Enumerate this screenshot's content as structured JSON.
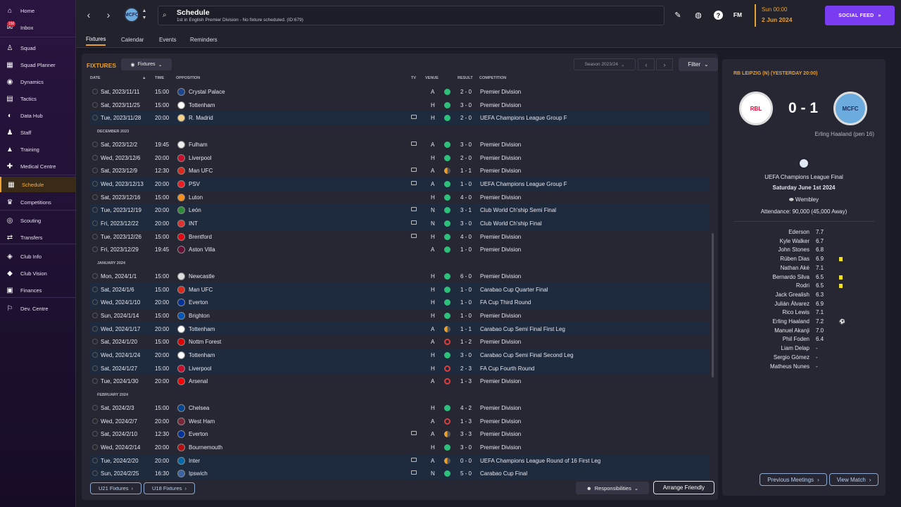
{
  "sidebar": {
    "items": [
      {
        "label": "Home",
        "icon": "home-icon",
        "glyph": "⌂"
      },
      {
        "label": "Inbox",
        "icon": "inbox-icon",
        "glyph": "✉",
        "badge": "150"
      },
      {
        "label": "Squad",
        "icon": "shirt-icon",
        "glyph": "♙"
      },
      {
        "label": "Squad Planner",
        "icon": "planner-icon",
        "glyph": "▦"
      },
      {
        "label": "Dynamics",
        "icon": "dynamics-icon",
        "glyph": "◉"
      },
      {
        "label": "Tactics",
        "icon": "tactics-icon",
        "glyph": "▤"
      },
      {
        "label": "Data Hub",
        "icon": "data-hub-icon",
        "glyph": "◐"
      },
      {
        "label": "Staff",
        "icon": "staff-icon",
        "glyph": "♟"
      },
      {
        "label": "Training",
        "icon": "training-icon",
        "glyph": "▲"
      },
      {
        "label": "Medical Centre",
        "icon": "medical-icon",
        "glyph": "✚"
      },
      {
        "label": "Schedule",
        "icon": "calendar-icon",
        "glyph": "▦"
      },
      {
        "label": "Competitions",
        "icon": "trophy-icon",
        "glyph": "♛"
      },
      {
        "label": "Scouting",
        "icon": "scouting-icon",
        "glyph": "◎"
      },
      {
        "label": "Transfers",
        "icon": "transfers-icon",
        "glyph": "⇄"
      },
      {
        "label": "Club Info",
        "icon": "shield-icon",
        "glyph": "◈"
      },
      {
        "label": "Club Vision",
        "icon": "vision-icon",
        "glyph": "◆"
      },
      {
        "label": "Finances",
        "icon": "finances-icon",
        "glyph": "▣"
      },
      {
        "label": "Dev. Centre",
        "icon": "dev-centre-icon",
        "glyph": "⚐"
      }
    ]
  },
  "header": {
    "title": "Schedule",
    "subtitle": "1st in English Premier Division - No fixture scheduled. (ID:679)",
    "club_crest": "MCFC",
    "date_line1": "Sun 00:00",
    "date_line2": "2 Jun 2024",
    "social_feed": "SOCIAL FEED",
    "fm": "FM",
    "help": "?"
  },
  "tabs": [
    "Fixtures",
    "Calendar",
    "Events",
    "Reminders"
  ],
  "fixtures": {
    "label": "FIXTURES",
    "dropdown": "Fixtures",
    "season": "Season 2023/24",
    "filter": "Filter",
    "columns": {
      "date": "DATE",
      "time": "TIME",
      "opposition": "OPPOSITION",
      "tv": "TV",
      "venue": "VENUE",
      "result": "RESULT",
      "competition": "COMPETITION"
    },
    "rows": [
      {
        "date": "Sat, 2023/11/11",
        "time": "15:00",
        "opp": "Crystal Palace",
        "crest": "#1b458f",
        "tv": false,
        "venue": "A",
        "res": "W",
        "score": "2 - 0",
        "comp": "Premier Division",
        "hl": false
      },
      {
        "date": "Sat, 2023/11/25",
        "time": "15:00",
        "opp": "Tottenham",
        "crest": "#ffffff",
        "tv": false,
        "venue": "H",
        "res": "W",
        "score": "3 - 0",
        "comp": "Premier Division",
        "hl": false
      },
      {
        "date": "Tue, 2023/11/28",
        "time": "20:00",
        "opp": "R. Madrid",
        "crest": "#f5d48a",
        "tv": true,
        "venue": "H",
        "res": "W",
        "score": "2 - 0",
        "comp": "UEFA Champions League Group F",
        "hl": true
      },
      {
        "month": "DECEMBER 2023"
      },
      {
        "date": "Sat, 2023/12/2",
        "time": "19:45",
        "opp": "Fulham",
        "crest": "#eeeeee",
        "tv": true,
        "venue": "A",
        "res": "W",
        "score": "3 - 0",
        "comp": "Premier Division",
        "hl": false
      },
      {
        "date": "Wed, 2023/12/6",
        "time": "20:00",
        "opp": "Liverpool",
        "crest": "#c8102e",
        "tv": false,
        "venue": "H",
        "res": "W",
        "score": "2 - 0",
        "comp": "Premier Division",
        "hl": false
      },
      {
        "date": "Sat, 2023/12/9",
        "time": "12:30",
        "opp": "Man UFC",
        "crest": "#da291c",
        "tv": true,
        "venue": "A",
        "res": "D",
        "score": "1 - 1",
        "comp": "Premier Division",
        "hl": false
      },
      {
        "date": "Wed, 2023/12/13",
        "time": "20:00",
        "opp": "PSV",
        "crest": "#ed1c24",
        "tv": true,
        "venue": "A",
        "res": "W",
        "score": "1 - 0",
        "comp": "UEFA Champions League Group F",
        "hl": true
      },
      {
        "date": "Sat, 2023/12/16",
        "time": "15:00",
        "opp": "Luton",
        "crest": "#f78f1e",
        "tv": false,
        "venue": "H",
        "res": "W",
        "score": "4 - 0",
        "comp": "Premier Division",
        "hl": false
      },
      {
        "date": "Tue, 2023/12/19",
        "time": "20:00",
        "opp": "León",
        "crest": "#2e8b3a",
        "tv": true,
        "venue": "N",
        "res": "W",
        "score": "3 - 1",
        "comp": "Club World Ch'ship Semi Final",
        "hl": true
      },
      {
        "date": "Fri, 2023/12/22",
        "time": "20:00",
        "opp": "INT",
        "crest": "#e03030",
        "tv": true,
        "venue": "N",
        "res": "W",
        "score": "3 - 0",
        "comp": "Club World Ch'ship Final",
        "hl": true
      },
      {
        "date": "Tue, 2023/12/26",
        "time": "15:00",
        "opp": "Brentford",
        "crest": "#e30613",
        "tv": true,
        "venue": "H",
        "res": "W",
        "score": "4 - 0",
        "comp": "Premier Division",
        "hl": false
      },
      {
        "date": "Fri, 2023/12/29",
        "time": "19:45",
        "opp": "Aston Villa",
        "crest": "#670e36",
        "tv": false,
        "venue": "A",
        "res": "W",
        "score": "1 - 0",
        "comp": "Premier Division",
        "hl": false
      },
      {
        "month": "JANUARY 2024"
      },
      {
        "date": "Mon, 2024/1/1",
        "time": "15:00",
        "opp": "Newcastle",
        "crest": "#dddddd",
        "tv": false,
        "venue": "H",
        "res": "W",
        "score": "6 - 0",
        "comp": "Premier Division",
        "hl": false
      },
      {
        "date": "Sat, 2024/1/6",
        "time": "15:00",
        "opp": "Man UFC",
        "crest": "#da291c",
        "tv": false,
        "venue": "H",
        "res": "W",
        "score": "1 - 0",
        "comp": "Carabao Cup Quarter Final",
        "hl": true
      },
      {
        "date": "Wed, 2024/1/10",
        "time": "20:00",
        "opp": "Everton",
        "crest": "#003399",
        "tv": false,
        "venue": "H",
        "res": "W",
        "score": "1 - 0",
        "comp": "FA Cup Third Round",
        "hl": true
      },
      {
        "date": "Sun, 2024/1/14",
        "time": "15:00",
        "opp": "Brighton",
        "crest": "#0057b8",
        "tv": false,
        "venue": "H",
        "res": "W",
        "score": "1 - 0",
        "comp": "Premier Division",
        "hl": false
      },
      {
        "date": "Wed, 2024/1/17",
        "time": "20:00",
        "opp": "Tottenham",
        "crest": "#ffffff",
        "tv": false,
        "venue": "A",
        "res": "D",
        "score": "1 - 1",
        "comp": "Carabao Cup Semi Final First Leg",
        "hl": true
      },
      {
        "date": "Sat, 2024/1/20",
        "time": "15:00",
        "opp": "Nottm Forest",
        "crest": "#dd0000",
        "tv": false,
        "venue": "A",
        "res": "L",
        "score": "1 - 2",
        "comp": "Premier Division",
        "hl": false
      },
      {
        "date": "Wed, 2024/1/24",
        "time": "20:00",
        "opp": "Tottenham",
        "crest": "#ffffff",
        "tv": false,
        "venue": "H",
        "res": "W",
        "score": "3 - 0",
        "comp": "Carabao Cup Semi Final Second Leg",
        "hl": true
      },
      {
        "date": "Sat, 2024/1/27",
        "time": "15:00",
        "opp": "Liverpool",
        "crest": "#c8102e",
        "tv": false,
        "venue": "H",
        "res": "L",
        "score": "2 - 3",
        "comp": "FA Cup Fourth Round",
        "hl": true
      },
      {
        "date": "Tue, 2024/1/30",
        "time": "20:00",
        "opp": "Arsenal",
        "crest": "#ef0107",
        "tv": false,
        "venue": "A",
        "res": "L",
        "score": "1 - 3",
        "comp": "Premier Division",
        "hl": false
      },
      {
        "month": "FEBRUARY 2024"
      },
      {
        "date": "Sat, 2024/2/3",
        "time": "15:00",
        "opp": "Chelsea",
        "crest": "#034694",
        "tv": false,
        "venue": "H",
        "res": "W",
        "score": "4 - 2",
        "comp": "Premier Division",
        "hl": false
      },
      {
        "date": "Wed, 2024/2/7",
        "time": "20:00",
        "opp": "West Ham",
        "crest": "#7a263a",
        "tv": false,
        "venue": "A",
        "res": "L",
        "score": "1 - 3",
        "comp": "Premier Division",
        "hl": false
      },
      {
        "date": "Sat, 2024/2/10",
        "time": "12:30",
        "opp": "Everton",
        "crest": "#003399",
        "tv": true,
        "venue": "A",
        "res": "D",
        "score": "3 - 3",
        "comp": "Premier Division",
        "hl": false
      },
      {
        "date": "Wed, 2024/2/14",
        "time": "20:00",
        "opp": "Bournemouth",
        "crest": "#b50e12",
        "tv": false,
        "venue": "H",
        "res": "W",
        "score": "3 - 0",
        "comp": "Premier Division",
        "hl": false
      },
      {
        "date": "Tue, 2024/2/20",
        "time": "20:00",
        "opp": "Inter",
        "crest": "#0068a8",
        "tv": true,
        "venue": "A",
        "res": "D",
        "score": "0 - 0",
        "comp": "UEFA Champions League Round of 16  First Leg",
        "hl": true
      },
      {
        "date": "Sun, 2024/2/25",
        "time": "16:30",
        "opp": "Ipswich",
        "crest": "#3a64a3",
        "tv": true,
        "venue": "N",
        "res": "W",
        "score": "5 - 0",
        "comp": "Carabao Cup Final",
        "hl": true
      }
    ]
  },
  "footer": {
    "u21": "U21 Fixtures",
    "u18": "U18 Fixtures",
    "responsibilities": "Responsibilities",
    "arrange": "Arrange Friendly"
  },
  "panel": {
    "header": "RB LEIPZIG (N) (YESTERDAY 20:00)",
    "home_crest": "RBL",
    "away_crest": "MCFC",
    "score": "0 - 1",
    "scorer": "Erling Haaland (pen 16)",
    "competition": "UEFA Champions League Final",
    "date": "Saturday June 1st 2024",
    "stadium": "Wembley",
    "attendance": "Attendance: 90,000 (45,000 Away)",
    "players": [
      {
        "name": "Ederson",
        "rating": "7.7"
      },
      {
        "name": "Kyle Walker",
        "rating": "6.7"
      },
      {
        "name": "John Stones",
        "rating": "6.8"
      },
      {
        "name": "Rúben Dias",
        "rating": "6.9",
        "card": true
      },
      {
        "name": "Nathan Aké",
        "rating": "7.1"
      },
      {
        "name": "Bernardo Silva",
        "rating": "6.5",
        "card": true
      },
      {
        "name": "Rodri",
        "rating": "6.5",
        "card": true
      },
      {
        "name": "Jack Grealish",
        "rating": "6.3"
      },
      {
        "name": "Julián Álvarez",
        "rating": "6.9"
      },
      {
        "name": "Rico Lewis",
        "rating": "7.1"
      },
      {
        "name": "Erling Haaland",
        "rating": "7.2",
        "goal": true
      },
      {
        "name": "Manuel Akanji",
        "rating": "7.0"
      },
      {
        "name": "Phil Foden",
        "rating": "6.4"
      },
      {
        "name": "Liam Delap",
        "rating": "-"
      },
      {
        "name": "Sergio Gómez",
        "rating": "-"
      },
      {
        "name": "Matheus Nunes",
        "rating": "-"
      }
    ],
    "prev": "Previous Meetings",
    "view": "View Match"
  }
}
